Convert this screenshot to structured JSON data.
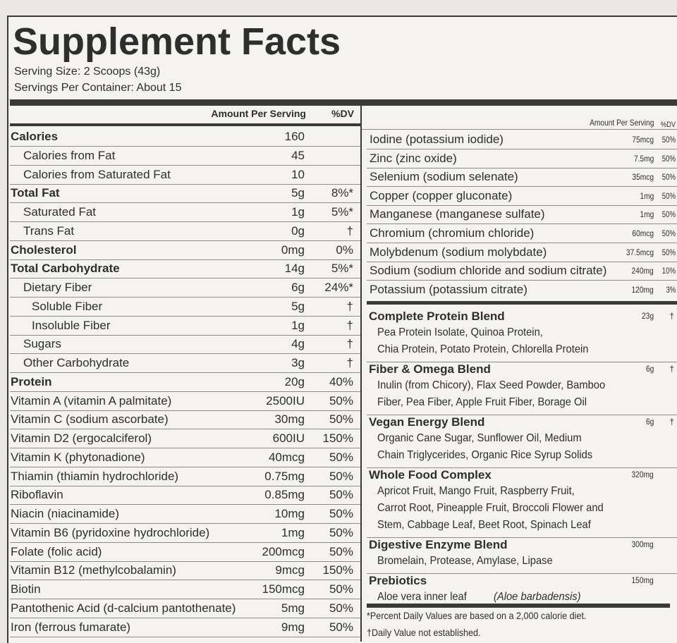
{
  "title": "Supplement Facts",
  "serving_size": "Serving Size: 2 Scoops (43g)",
  "servings_per_container": "Servings Per Container: About 15",
  "left": {
    "header": {
      "amount": "Amount Per Serving",
      "dv": "%DV"
    },
    "rows": [
      {
        "name": "Calories",
        "amount": "160"
      },
      {
        "name": "Calories from Fat",
        "amount": "45"
      },
      {
        "name": "Calories from Saturated Fat",
        "amount": "10"
      },
      {
        "name": "Total Fat",
        "amount": "5g",
        "dv": "8%*"
      },
      {
        "name": "Saturated Fat",
        "amount": "1g",
        "dv": "5%*"
      },
      {
        "name": "Trans Fat",
        "amount": "0g",
        "dv": "†"
      },
      {
        "name": "Cholesterol",
        "amount": "0mg",
        "dv": "0%"
      },
      {
        "name": "Total Carbohydrate",
        "amount": "14g",
        "dv": "5%*"
      },
      {
        "name": "Dietary Fiber",
        "amount": "6g",
        "dv": "24%*"
      },
      {
        "name": "Soluble Fiber",
        "amount": "5g",
        "dv": "†"
      },
      {
        "name": "Insoluble Fiber",
        "amount": "1g",
        "dv": "†"
      },
      {
        "name": "Sugars",
        "amount": "4g",
        "dv": "†"
      },
      {
        "name": "Other Carbohydrate",
        "amount": "3g",
        "dv": "†"
      },
      {
        "name": "Protein",
        "amount": "20g",
        "dv": "40%"
      },
      {
        "name": "Vitamin A (vitamin A palmitate)",
        "amount": "2500IU",
        "dv": "50%"
      },
      {
        "name": "Vitamin C (sodium ascorbate)",
        "amount": "30mg",
        "dv": "50%"
      },
      {
        "name": "Vitamin D2 (ergocalciferol)",
        "amount": "600IU",
        "dv": "150%"
      },
      {
        "name": "Vitamin K (phytonadione)",
        "amount": "40mcg",
        "dv": "50%"
      },
      {
        "name": "Thiamin (thiamin hydrochloride)",
        "amount": "0.75mg",
        "dv": "50%"
      },
      {
        "name": "Riboflavin",
        "amount": "0.85mg",
        "dv": "50%"
      },
      {
        "name": "Niacin (niacinamide)",
        "amount": "10mg",
        "dv": "50%"
      },
      {
        "name": "Vitamin B6 (pyridoxine hydrochloride)",
        "amount": "1mg",
        "dv": "50%"
      },
      {
        "name": "Folate (folic acid)",
        "amount": "200mcg",
        "dv": "50%"
      },
      {
        "name": "Vitamin B12 (methylcobalamin)",
        "amount": "9mcg",
        "dv": "150%"
      },
      {
        "name": "Biotin",
        "amount": "150mcg",
        "dv": "50%"
      },
      {
        "name": "Pantothenic Acid (d-calcium pantothenate)",
        "amount": "5mg",
        "dv": "50%"
      },
      {
        "name": "Iron (ferrous fumarate)",
        "amount": "9mg",
        "dv": "50%"
      }
    ]
  },
  "right": {
    "header": {
      "amount": "Amount Per Serving",
      "dv": "%DV"
    },
    "rows": [
      {
        "name": "Iodine (potassium iodide)",
        "amount": "75mcg",
        "dv": "50%"
      },
      {
        "name": "Zinc (zinc oxide)",
        "amount": "7.5mg",
        "dv": "50%"
      },
      {
        "name": "Selenium (sodium selenate)",
        "amount": "35mcg",
        "dv": "50%"
      },
      {
        "name": "Copper (copper gluconate)",
        "amount": "1mg",
        "dv": "50%"
      },
      {
        "name": "Manganese (manganese sulfate)",
        "amount": "1mg",
        "dv": "50%"
      },
      {
        "name": "Chromium (chromium chloride)",
        "amount": "60mcg",
        "dv": "50%"
      },
      {
        "name": "Molybdenum (sodium molybdate)",
        "amount": "37.5mcg",
        "dv": "50%"
      },
      {
        "name": "Sodium (sodium chloride and sodium citrate)",
        "amount": "240mg",
        "dv": "10%"
      },
      {
        "name": "Potassium (potassium citrate)",
        "amount": "120mg",
        "dv": "3%"
      }
    ],
    "blends": [
      {
        "name": "Complete Protein Blend",
        "amount": "23g",
        "dv": "†",
        "ingredients": [
          "Pea Protein Isolate, Quinoa Protein,",
          "Chia Protein, Potato Protein, Chlorella Protein"
        ]
      },
      {
        "name": "Fiber & Omega Blend",
        "amount": "6g",
        "dv": "†",
        "ingredients": [
          "Inulin (from Chicory), Flax Seed Powder, Bamboo",
          "Fiber, Pea Fiber, Apple Fruit Fiber, Borage Oil"
        ]
      },
      {
        "name": "Vegan Energy Blend",
        "amount": "6g",
        "dv": "†",
        "ingredients": [
          "Organic Cane Sugar, Sunflower Oil, Medium",
          "Chain Triglycerides, Organic Rice Syrup Solids"
        ]
      },
      {
        "name": "Whole Food Complex",
        "amount": "320mg",
        "ingredients": [
          "Apricot Fruit, Mango Fruit, Raspberry Fruit,",
          "Carrot Root, Pineapple Fruit, Broccoli Flower and",
          "Stem, Cabbage Leaf, Beet Root, Spinach Leaf"
        ]
      },
      {
        "name": "Digestive Enzyme Blend",
        "amount": "300mg",
        "ingredients": [
          "Bromelain, Protease, Amylase, Lipase"
        ]
      },
      {
        "name": "Prebiotics",
        "amount": "150mg",
        "ingredients": [
          "Aloe vera inner leaf",
          "(Aloe barbadensis)"
        ]
      }
    ],
    "footnotes": [
      "*Percent Daily Values are based on a 2,000 calorie diet.",
      "†Daily Value not established."
    ]
  }
}
